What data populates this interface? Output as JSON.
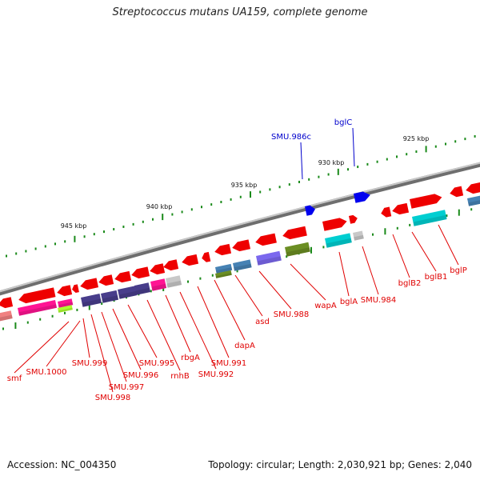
{
  "title": "Streptococcus mutans UA159, complete genome",
  "footer": {
    "accession": "Accession: NC_004350",
    "stats": "Topology: circular; Length: 2,030,921 bp; Genes: 2,040"
  },
  "colors": {
    "backbone": "#8a8a8a",
    "tick": "#1a8a1a",
    "label_red": "#e00000",
    "label_blue": "#0000cc"
  },
  "scale_labels": [
    "925 kbp",
    "930 kbp",
    "935 kbp",
    "940 kbp",
    "945 kbp"
  ],
  "genes_top": [
    "SMU.986c",
    "bglC"
  ],
  "genes_bottom": [
    "smf",
    "SMU.1000",
    "SMU.999",
    "SMU.998",
    "SMU.997",
    "SMU.996",
    "SMU.995",
    "rnhB",
    "rbgA",
    "SMU.992",
    "SMU.991",
    "dapA",
    "asd",
    "SMU.988",
    "wapA",
    "bglA",
    "SMU.984",
    "bglB2",
    "bglB1",
    "bglP"
  ]
}
